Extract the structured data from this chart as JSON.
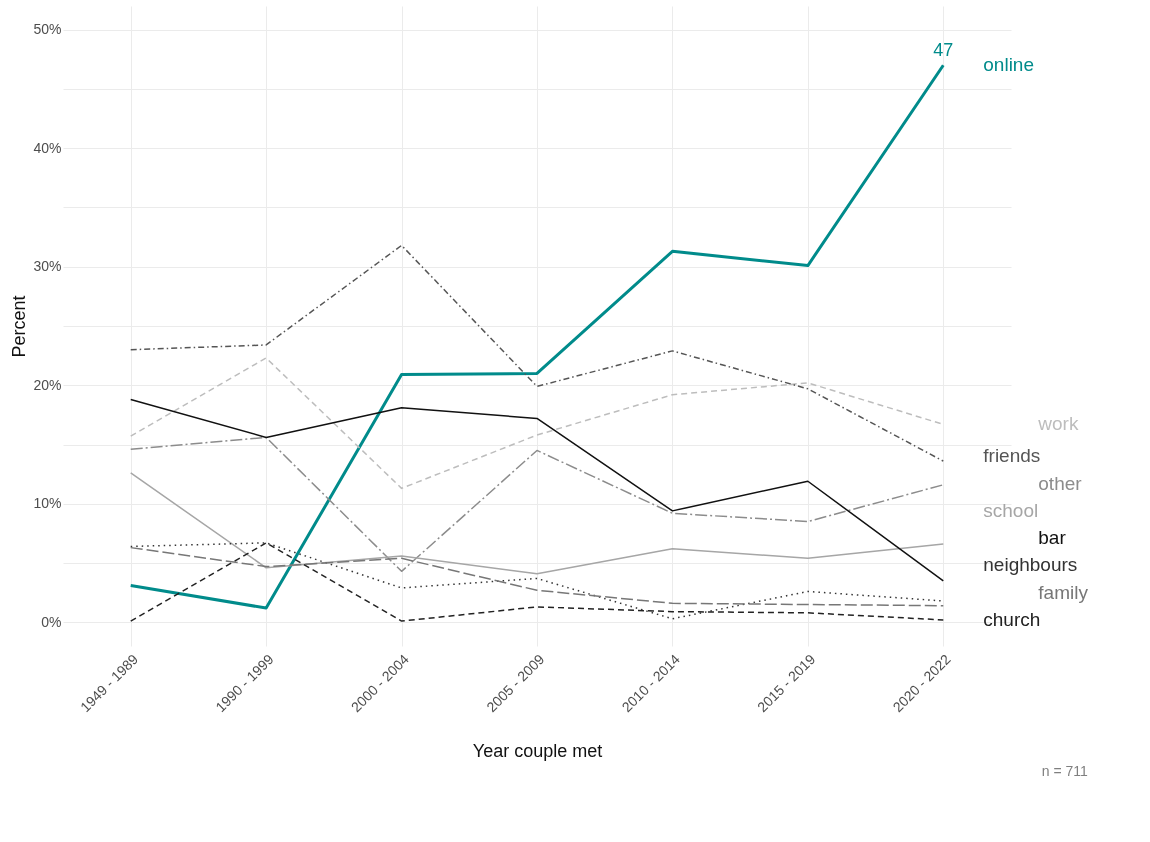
{
  "chart_data": {
    "type": "line",
    "xlabel": "Year couple met",
    "ylabel": "Percent",
    "categories": [
      "1949 - 1989",
      "1990 - 1999",
      "2000 - 2004",
      "2005 - 2009",
      "2010 - 2014",
      "2015 - 2019",
      "2020 - 2022"
    ],
    "ylim": [
      -2,
      52
    ],
    "yticks": [
      {
        "value": 0,
        "label": "0%"
      },
      {
        "value": 5,
        "label": null
      },
      {
        "value": 10,
        "label": "10%"
      },
      {
        "value": 15,
        "label": null
      },
      {
        "value": 20,
        "label": "20%"
      },
      {
        "value": 25,
        "label": null
      },
      {
        "value": 30,
        "label": "30%"
      },
      {
        "value": 35,
        "label": null
      },
      {
        "value": 40,
        "label": "40%"
      },
      {
        "value": 45,
        "label": null
      },
      {
        "value": 50,
        "label": "50%"
      }
    ],
    "grid": true,
    "series": [
      {
        "name": "online",
        "color": "#008b8b",
        "line_style": "solid",
        "values": [
          3.1,
          1.2,
          20.9,
          21.0,
          31.3,
          30.1,
          47
        ],
        "value_labels": [
          null,
          null,
          null,
          null,
          null,
          null,
          "47"
        ]
      },
      {
        "name": "work",
        "color": "#bdbdbd",
        "line_style": "dashed",
        "values": [
          15.7,
          22.3,
          11.3,
          15.8,
          19.2,
          20.2,
          16.7
        ]
      },
      {
        "name": "friends",
        "color": "#555555",
        "line_style": "dashdot",
        "values": [
          23.0,
          23.4,
          31.8,
          19.9,
          22.9,
          19.7,
          13.6
        ]
      },
      {
        "name": "other",
        "color": "#8c8c8c",
        "line_style": "longdashdot",
        "values": [
          14.6,
          15.6,
          4.3,
          14.5,
          9.2,
          8.5,
          11.6
        ]
      },
      {
        "name": "school",
        "color": "#a6a6a6",
        "line_style": "solid",
        "values": [
          12.6,
          4.6,
          5.6,
          4.1,
          6.2,
          5.4,
          6.6
        ]
      },
      {
        "name": "bar",
        "color": "#111111",
        "line_style": "solid",
        "values": [
          18.8,
          15.6,
          18.1,
          17.2,
          9.4,
          11.9,
          3.5
        ]
      },
      {
        "name": "neighbours",
        "color": "#333333",
        "line_style": "dotted",
        "values": [
          6.4,
          6.7,
          2.9,
          3.7,
          0.3,
          2.6,
          1.8
        ]
      },
      {
        "name": "family",
        "color": "#777777",
        "line_style": "longdash",
        "values": [
          6.3,
          4.7,
          5.4,
          2.7,
          1.6,
          1.5,
          1.4
        ]
      },
      {
        "name": "church",
        "color": "#222222",
        "line_style": "dashed",
        "values": [
          0.1,
          6.7,
          0.1,
          1.3,
          0.9,
          0.8,
          0.2
        ]
      }
    ],
    "annotations": [
      "n = 711"
    ]
  }
}
